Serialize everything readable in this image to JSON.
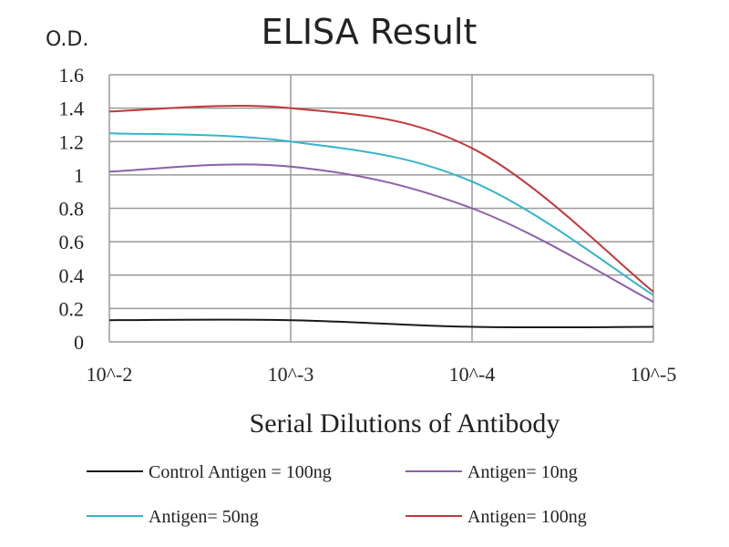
{
  "chart_data": {
    "type": "line",
    "title": "ELISA Result",
    "ylabel": "O.D.",
    "xlabel": "Serial  Dilutions  of Antibody",
    "categories": [
      "10^-2",
      "10^-3",
      "10^-4",
      "10^-5"
    ],
    "y_ticks": [
      "0",
      "0.2",
      "0.4",
      "0.6",
      "0.8",
      "1",
      "1.2",
      "1.4",
      "1.6"
    ],
    "ylim": [
      0,
      1.6
    ],
    "grid": true,
    "legend_position": "bottom",
    "series": [
      {
        "name": "Control Antigen = 100ng",
        "color": "#1a1a1a",
        "values": [
          0.13,
          0.13,
          0.09,
          0.09
        ]
      },
      {
        "name": "Antigen= 10ng",
        "color": "#8e5fa8",
        "values": [
          1.02,
          1.05,
          0.8,
          0.24
        ]
      },
      {
        "name": "Antigen= 50ng",
        "color": "#35b5c9",
        "values": [
          1.25,
          1.2,
          0.96,
          0.28
        ]
      },
      {
        "name": "Antigen= 100ng",
        "color": "#c0393b",
        "values": [
          1.38,
          1.4,
          1.16,
          0.3
        ]
      }
    ]
  }
}
